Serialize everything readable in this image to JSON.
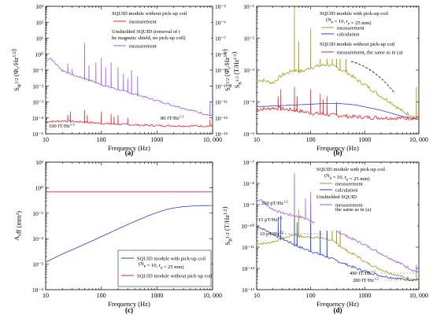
{
  "chart_data": [
    {
      "id": "a",
      "type": "line",
      "panel_label": "(a)",
      "xlabel": "Frequency (Hz)",
      "ylabel": "S_Φ^{1/2} (Φ₀/Hz^{1/2})",
      "ylabel_right": "S_B^{1/2} (T/Hz^{1/2})",
      "xscale": "log",
      "yscale": "log",
      "xlim": [
        10,
        10000
      ],
      "ylim": [
        1e-05,
        1000
      ],
      "y2lim": [
        1e-13,
        1e-05
      ],
      "x_ticks": [
        10,
        100,
        1000,
        10000
      ],
      "x_tick_labels": [
        "10",
        "100",
        "1000",
        "10, 000"
      ],
      "y_tick_labels": [
        "10⁻⁵",
        "10⁻⁴",
        "10⁻³",
        "10⁻²",
        "10⁻¹",
        "10⁰",
        "10¹",
        "10²",
        "10³"
      ],
      "y2_tick_labels": [
        "10⁻¹³",
        "10⁻¹²",
        "10⁻¹¹",
        "10⁻¹⁰",
        "10⁻⁹",
        "10⁻⁸",
        "10⁻⁷",
        "10⁻⁶",
        "10⁻⁵"
      ],
      "legend": {
        "group1": "SQUID module without pick-up coil",
        "group2": "Unshielded SQUID (removal of the magnetic shield, no pick-up coil)"
      },
      "annotations": [
        "100 fT/Hz^{1/2}",
        "80 fT/Hz^{1/2}"
      ],
      "series": [
        {
          "name": "measurement",
          "group": 1,
          "color": "#e8202a",
          "x": [
            10,
            12,
            15,
            20,
            30,
            50,
            70,
            100,
            200,
            300,
            500,
            1000,
            2000,
            5000,
            10000
          ],
          "y": [
            5.5e-05,
            6e-05,
            6e-05,
            6.5e-05,
            6e-05,
            5.5e-05,
            5e-05,
            4.5e-05,
            4e-05,
            3.8e-05,
            3.5e-05,
            3.3e-05,
            3.2e-05,
            3.1e-05,
            3.1e-05
          ],
          "spikes": [
            [
              25,
              0.00015
            ],
            [
              28,
              0.00025
            ],
            [
              50,
              0.0003
            ],
            [
              56,
              0.00015
            ],
            [
              100,
              0.00025
            ],
            [
              150,
              0.00018
            ],
            [
              170,
              0.00012
            ],
            [
              200,
              0.00015
            ],
            [
              300,
              0.0001
            ],
            [
              9000,
              8e-05
            ]
          ]
        },
        {
          "name": "measurement",
          "group": 2,
          "color": "#9b59e6",
          "x": [
            10,
            12,
            15,
            20,
            30,
            50,
            70,
            100,
            200,
            300,
            500,
            1000,
            2000,
            5000,
            10000
          ],
          "y": [
            0.35,
            0.6,
            0.25,
            0.1,
            0.05,
            0.03,
            0.02,
            0.012,
            0.006,
            0.004,
            0.0025,
            0.0012,
            0.0006,
            0.00025,
            0.00013
          ],
          "spikes": [
            [
              20,
              0.1
            ],
            [
              25,
              0.25
            ],
            [
              30,
              0.12
            ],
            [
              50,
              5
            ],
            [
              60,
              0.2
            ],
            [
              80,
              0.3
            ],
            [
              100,
              0.6
            ],
            [
              120,
              0.15
            ],
            [
              150,
              0.3
            ],
            [
              200,
              0.15
            ],
            [
              250,
              0.06
            ],
            [
              300,
              0.03
            ],
            [
              350,
              0.1
            ],
            [
              450,
              0.04
            ],
            [
              9000,
              0.001
            ]
          ]
        }
      ]
    },
    {
      "id": "b",
      "type": "line",
      "panel_label": "(b)",
      "xlabel": "Frequency (Hz)",
      "ylabel": "S_Φ^{1/2} (Φ₀/Hz^{1/2})",
      "xscale": "log",
      "yscale": "log",
      "xlim": [
        10,
        10000
      ],
      "ylim": [
        1e-05,
        0.1
      ],
      "x_ticks": [
        10,
        100,
        1000,
        10000
      ],
      "x_tick_labels": [
        "10",
        "100",
        "1000",
        "10, 000"
      ],
      "y_tick_labels": [
        "10⁻⁵",
        "10⁻⁴",
        "10⁻³",
        "10⁻²",
        "10⁻¹"
      ],
      "legend": {
        "group1": "SQUID module with pick-up coil",
        "group1_params": "(N_p = 10, r_p = 25 mm)",
        "group2": "SQUID module without pick-up coil"
      },
      "series": [
        {
          "name": "measurement",
          "group": 1,
          "color": "#a89a12",
          "x": [
            10,
            15,
            20,
            30,
            50,
            70,
            100,
            200,
            300,
            500,
            700,
            1000,
            2000,
            3000,
            5000,
            10000
          ],
          "y": [
            0.0005,
            0.00045,
            0.0004,
            0.0007,
            0.001,
            0.0009,
            0.0012,
            0.0015,
            0.0012,
            0.0008,
            0.0005,
            0.00035,
            0.00015,
            0.0001,
            5e-05,
            3e-05
          ],
          "spikes": [
            [
              50,
              0.09
            ],
            [
              60,
              0.008
            ],
            [
              100,
              0.02
            ],
            [
              150,
              0.03
            ],
            [
              200,
              0.015
            ],
            [
              250,
              0.02
            ],
            [
              300,
              0.012
            ],
            [
              350,
              0.006
            ],
            [
              450,
              0.004
            ],
            [
              9000,
              0.0003
            ]
          ]
        },
        {
          "name": "calculation",
          "group": 1,
          "color": "#2340d8",
          "x": [
            10,
            20,
            50,
            100,
            200,
            300,
            500,
            700,
            1000,
            2000,
            3000,
            5000,
            10000
          ],
          "y": [
            7e-05,
            7.5e-05,
            8e-05,
            8.5e-05,
            9e-05,
            9e-05,
            8.5e-05,
            8e-05,
            7e-05,
            5.5e-05,
            4.5e-05,
            3.5e-05,
            2.8e-05
          ]
        },
        {
          "name": "measurement, the same as in (a)",
          "group": 2,
          "color": "#e8202a",
          "x": [
            10,
            12,
            15,
            20,
            30,
            50,
            70,
            100,
            200,
            300,
            500,
            1000,
            2000,
            5000,
            10000
          ],
          "y": [
            5.5e-05,
            6e-05,
            6e-05,
            6.5e-05,
            6e-05,
            5.5e-05,
            5e-05,
            4.5e-05,
            4e-05,
            3.8e-05,
            3.5e-05,
            3.3e-05,
            3.2e-05,
            3.1e-05,
            3.1e-05
          ],
          "spikes": [
            [
              25,
              0.00015
            ],
            [
              28,
              0.00025
            ],
            [
              50,
              0.0003
            ],
            [
              56,
              0.00015
            ],
            [
              100,
              0.00025
            ],
            [
              150,
              0.00018
            ],
            [
              170,
              0.00012
            ],
            [
              200,
              0.00015
            ],
            [
              300,
              0.0001
            ]
          ]
        }
      ]
    },
    {
      "id": "c",
      "type": "line",
      "panel_label": "(c)",
      "xlabel": "Frequency (Hz)",
      "ylabel": "A_eff (mm²)",
      "xscale": "log",
      "yscale": "log",
      "xlim": [
        10,
        10000
      ],
      "ylim": [
        0.0001,
        10
      ],
      "x_ticks": [
        10,
        100,
        1000,
        10000
      ],
      "x_tick_labels": [
        "10",
        "100",
        "1000",
        "10, 000"
      ],
      "y_tick_labels": [
        "10⁻⁴",
        "10⁻³",
        "10⁻²",
        "10⁻¹",
        "10⁰",
        "10¹"
      ],
      "series": [
        {
          "name": "SQUID module with pick-up coil",
          "params": "(N_p = 10, r_p = 25 mm)",
          "color": "#2340d8",
          "x": [
            10,
            20,
            50,
            100,
            200,
            300,
            500,
            700,
            1000,
            1500,
            2000,
            3000,
            5000,
            10000
          ],
          "y": [
            0.0012,
            0.0025,
            0.006,
            0.012,
            0.024,
            0.036,
            0.058,
            0.079,
            0.105,
            0.14,
            0.16,
            0.18,
            0.195,
            0.2
          ]
        },
        {
          "name": "SQUID module without pick-up coil",
          "color": "#e8202a",
          "x": [
            10,
            10000
          ],
          "y": [
            0.68,
            0.68
          ]
        }
      ]
    },
    {
      "id": "d",
      "type": "line",
      "panel_label": "(d)",
      "xlabel": "Frequency (Hz)",
      "ylabel": "S_B^{1/2} (T/Hz^{1/2})",
      "xscale": "log",
      "yscale": "log",
      "xlim": [
        10,
        10000
      ],
      "ylim": [
        1e-13,
        1e-07
      ],
      "x_ticks": [
        10,
        100,
        1000,
        10000
      ],
      "x_tick_labels": [
        "10",
        "100",
        "1000",
        "10, 000"
      ],
      "y_tick_labels": [
        "10⁻¹³",
        "10⁻¹²",
        "10⁻¹¹",
        "10⁻¹⁰",
        "10⁻⁹",
        "10⁻⁸",
        "10⁻⁷"
      ],
      "legend": {
        "group1": "SQUID module with pick-up coil",
        "group1_params": "(N_p = 10, r_p = 25 mm)",
        "group2": "Unshielded SQUID"
      },
      "annotations": [
        "260 pT/Hz^{1/2}",
        "15 pT/Hz^{1/2}",
        "10 pT/Hz^{1/2}",
        "490 fT/Hz^{1/2}",
        "280 fT/Hz^{1/2}"
      ],
      "series": [
        {
          "name": "measurement",
          "group": 1,
          "color": "#a89a12",
          "x": [
            10,
            15,
            20,
            30,
            50,
            70,
            100,
            200,
            300,
            500,
            700,
            1000,
            2000,
            3000,
            5000,
            10000
          ],
          "y": [
            1.5e-11,
            1.5e-11,
            1.8e-11,
            2.5e-11,
            4e-11,
            3e-11,
            3e-11,
            2.5e-11,
            1.5e-11,
            6e-12,
            4e-12,
            2e-12,
            9e-13,
            6e-13,
            4e-13,
            2.8e-13
          ],
          "spikes": [
            [
              50,
              2e-08
            ],
            [
              60,
              6e-10
            ],
            [
              100,
              1.2e-09
            ],
            [
              150,
              1.5e-09
            ],
            [
              200,
              1e-09
            ],
            [
              250,
              1.2e-09
            ],
            [
              300,
              6e-10
            ],
            [
              350,
              3e-10
            ],
            [
              9000,
              8e-13
            ]
          ]
        },
        {
          "name": "calculation",
          "group": 1,
          "color": "#2340d8",
          "x": [
            10,
            15,
            20,
            30,
            50,
            70,
            100,
            200,
            300,
            500,
            700,
            1000,
            2000,
            3000,
            5000,
            10000
          ],
          "y": [
            1e-10,
            6e-11,
            4e-11,
            2.5e-11,
            1.3e-11,
            9e-12,
            6.5e-12,
            3.5e-12,
            2.3e-12,
            1.4e-12,
            1e-12,
            7.5e-13,
            4.5e-13,
            3.8e-13,
            3.1e-13,
            2.8e-13
          ],
          "spikes": [
            [
              25,
              2.5e-10
            ],
            [
              28,
              3e-10
            ],
            [
              50,
              2.5e-10
            ],
            [
              56,
              1.5e-10
            ],
            [
              100,
              1.5e-10
            ],
            [
              150,
              8e-11
            ],
            [
              200,
              6e-11
            ]
          ]
        },
        {
          "name": "measurement",
          "sublabel": "the same as in (a)",
          "group": 2,
          "color": "#9b59e6",
          "x": [
            10,
            12,
            15,
            20,
            30,
            50,
            70,
            100,
            200,
            300,
            500,
            1000,
            2000,
            5000,
            10000
          ],
          "y": [
            1.5e-09,
            1.8e-09,
            1e-09,
            6e-10,
            4e-10,
            3e-10,
            2.5e-10,
            1.8e-10,
            9e-11,
            6e-11,
            3e-11,
            1.3e-11,
            5e-12,
            1.5e-12,
            6e-13
          ],
          "spikes": [
            [
              50,
              3e-08
            ],
            [
              80,
              2e-09
            ],
            [
              100,
              4e-09
            ],
            [
              150,
              2e-09
            ],
            [
              200,
              1e-09
            ],
            [
              350,
              6e-10
            ],
            [
              9000,
              1.5e-12
            ]
          ]
        }
      ]
    }
  ]
}
